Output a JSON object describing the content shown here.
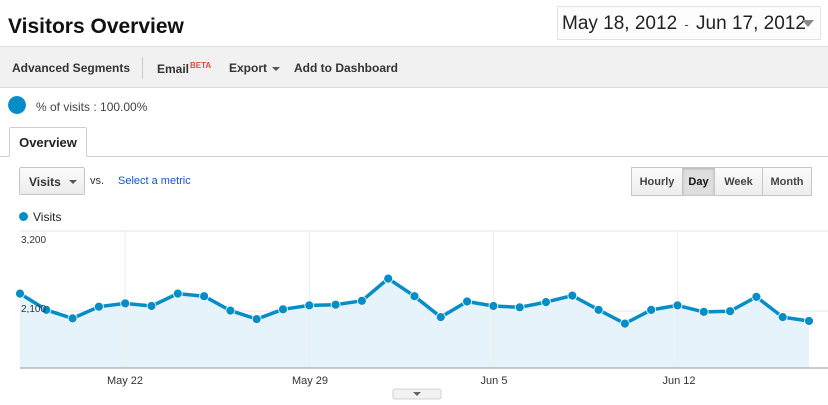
{
  "header": {
    "title": "Visitors Overview",
    "date_start": "May 18, 2012",
    "date_sep": "-",
    "date_end": "Jun 17, 2012"
  },
  "toolbar": {
    "advanced_segments": "Advanced Segments",
    "email": "Email",
    "beta": "BETA",
    "export": "Export",
    "add_to_dashboard": "Add to Dashboard"
  },
  "segment": {
    "text": "% of visits : 100.00%"
  },
  "tabs": {
    "overview": "Overview"
  },
  "controls": {
    "metric": "Visits",
    "vs": "vs.",
    "select_metric": "Select a metric",
    "granularity": [
      "Hourly",
      "Day",
      "Week",
      "Month"
    ],
    "active_granularity": "Day"
  },
  "colors": {
    "series": "#058dc7",
    "area_fill": "#e6f3fa",
    "link": "#1155cc"
  },
  "icons": {
    "pie": "pie-chart-icon",
    "dropdown": "chevron-down-icon",
    "expand": "expand-handle-icon"
  },
  "chart_data": {
    "type": "area",
    "series": [
      {
        "name": "Visits",
        "values": [
          2240,
          1990,
          1860,
          2040,
          2090,
          2050,
          2240,
          2200,
          1980,
          1850,
          2000,
          2060,
          2070,
          2130,
          2470,
          2200,
          1880,
          2120,
          2050,
          2030,
          2110,
          2210,
          1990,
          1780,
          1990,
          2060,
          1960,
          1970,
          2190,
          1880,
          1820
        ]
      }
    ],
    "x": [
      "May 18",
      "May 19",
      "May 20",
      "May 21",
      "May 22",
      "May 23",
      "May 24",
      "May 25",
      "May 26",
      "May 27",
      "May 28",
      "May 29",
      "May 30",
      "May 31",
      "Jun 1",
      "Jun 2",
      "Jun 3",
      "Jun 4",
      "Jun 5",
      "Jun 6",
      "Jun 7",
      "Jun 8",
      "Jun 9",
      "Jun 10",
      "Jun 11",
      "Jun 12",
      "Jun 13",
      "Jun 14",
      "Jun 15",
      "Jun 16",
      "Jun 17"
    ],
    "x_tick_labels": [
      "May 22",
      "May 29",
      "Jun 5",
      "Jun 12"
    ],
    "y_tick_labels": [
      "3,200",
      "2,100"
    ],
    "ylim": [
      1100,
      3200
    ],
    "grid": true,
    "legend": "top-left"
  }
}
